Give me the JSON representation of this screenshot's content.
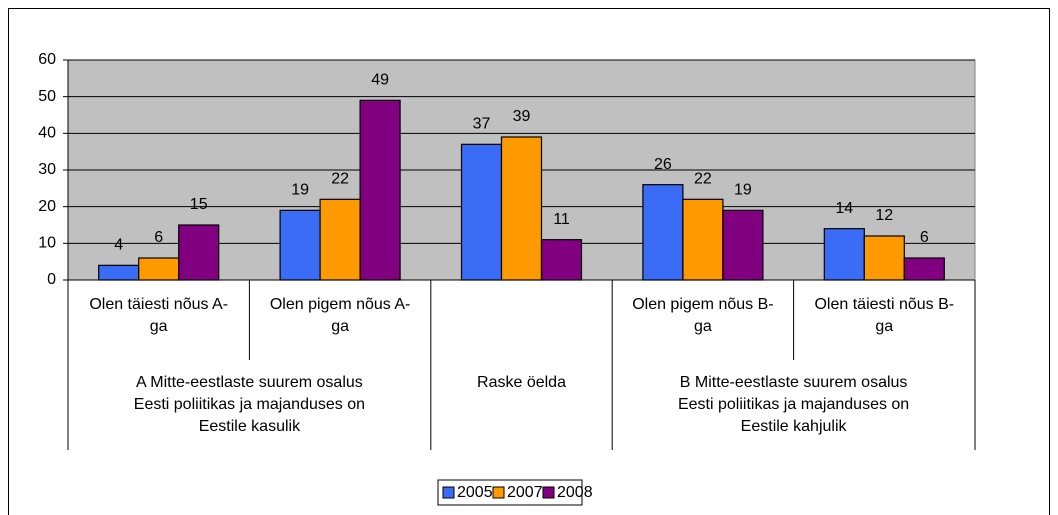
{
  "chart_data": {
    "type": "bar",
    "groups": [
      {
        "label": "A Mitte-eestlaste suurem osalus Eesti poliitikas ja majanduses on Eestile kasulik",
        "categories": [
          "Olen täiesti nõus A-ga",
          "Olen pigem nõus A-ga"
        ]
      },
      {
        "label": "Raske öelda",
        "categories": [
          null
        ]
      },
      {
        "label": "B Mitte-eestlaste suurem osalus Eesti poliitikas ja majanduses on Eestile kahjulik",
        "categories": [
          "Olen pigem nõus B-ga",
          "Olen täiesti nõus B-ga"
        ]
      }
    ],
    "series": [
      {
        "name": "2005",
        "color": "#3a6cf5",
        "values": [
          4,
          19,
          37,
          26,
          14
        ]
      },
      {
        "name": "2007",
        "color": "#ff9900",
        "values": [
          6,
          22,
          39,
          22,
          12
        ]
      },
      {
        "name": "2008",
        "color": "#800080",
        "values": [
          15,
          49,
          11,
          19,
          6
        ]
      }
    ],
    "ylim": [
      0,
      60
    ],
    "yticks": [
      0,
      10,
      20,
      30,
      40,
      50,
      60
    ],
    "grid": true,
    "legend": "bottom"
  }
}
